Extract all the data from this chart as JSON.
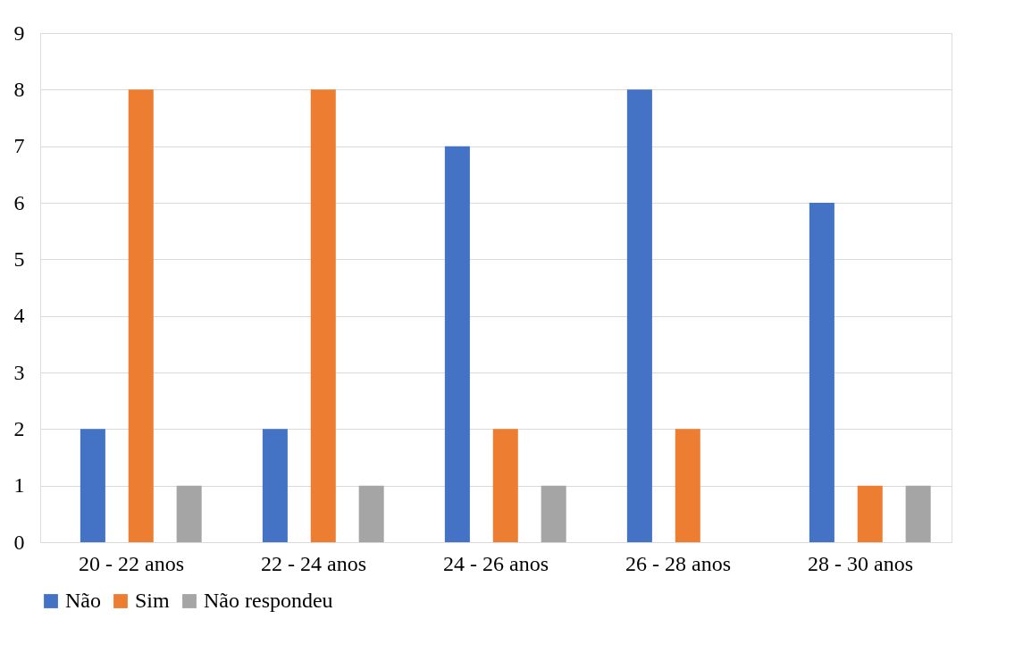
{
  "chart_data": {
    "type": "bar",
    "categories": [
      "20 - 22 anos",
      "22 - 24 anos",
      "24 - 26 anos",
      "26 - 28 anos",
      "28 - 30 anos"
    ],
    "series": [
      {
        "name": "Não",
        "color": "#4472c4",
        "values": [
          2,
          2,
          7,
          8,
          6
        ]
      },
      {
        "name": "Sim",
        "color": "#ed7d31",
        "values": [
          8,
          8,
          2,
          2,
          1
        ]
      },
      {
        "name": "Não respondeu",
        "color": "#a5a5a5",
        "values": [
          1,
          1,
          1,
          0,
          1
        ]
      }
    ],
    "ylim": [
      0,
      9
    ],
    "yticks": [
      0,
      1,
      2,
      3,
      4,
      5,
      6,
      7,
      8,
      9
    ],
    "grid": "y",
    "legend": "bottom"
  }
}
